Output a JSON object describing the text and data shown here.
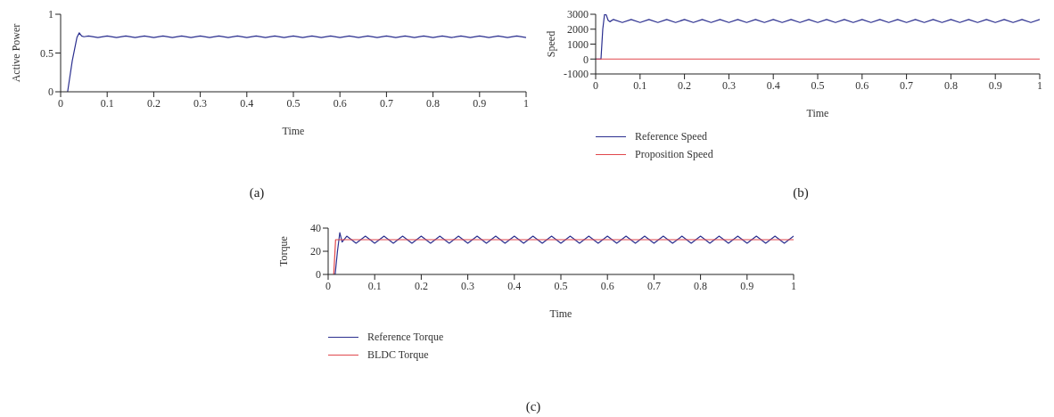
{
  "chart_data": [
    {
      "type": "line",
      "xlabel": "Time",
      "ylabel": "Active Power",
      "xlim": [
        0,
        1
      ],
      "xticks": [
        0,
        0.1,
        0.2,
        0.3,
        0.4,
        0.5,
        0.6,
        0.7,
        0.8,
        0.9,
        1
      ],
      "ylim": [
        0,
        1
      ],
      "yticks": [
        0,
        0.5,
        1
      ],
      "legend": false,
      "marker": "none",
      "line_style": "solid",
      "annotations": [
        "(a)"
      ],
      "series": [
        {
          "color": "#2b2f8f",
          "x": [
            0.015,
            0.025,
            0.035,
            0.04,
            0.045,
            0.05,
            0.06,
            0.08,
            0.1,
            0.12,
            0.14,
            0.16,
            0.18,
            0.2,
            0.22,
            0.24,
            0.26,
            0.28,
            0.3,
            0.32,
            0.34,
            0.36,
            0.38,
            0.4,
            0.42,
            0.44,
            0.46,
            0.48,
            0.5,
            0.52,
            0.54,
            0.56,
            0.58,
            0.6,
            0.62,
            0.64,
            0.66,
            0.68,
            0.7,
            0.72,
            0.74,
            0.76,
            0.78,
            0.8,
            0.82,
            0.84,
            0.86,
            0.88,
            0.9,
            0.92,
            0.94,
            0.96,
            0.98,
            1
          ],
          "values": [
            0,
            0.4,
            0.7,
            0.76,
            0.72,
            0.71,
            0.72,
            0.7,
            0.72,
            0.7,
            0.72,
            0.7,
            0.72,
            0.7,
            0.72,
            0.7,
            0.72,
            0.7,
            0.72,
            0.7,
            0.72,
            0.7,
            0.72,
            0.7,
            0.72,
            0.7,
            0.72,
            0.7,
            0.72,
            0.7,
            0.72,
            0.7,
            0.72,
            0.7,
            0.72,
            0.7,
            0.72,
            0.7,
            0.72,
            0.7,
            0.72,
            0.7,
            0.72,
            0.7,
            0.72,
            0.7,
            0.72,
            0.7,
            0.72,
            0.7,
            0.72,
            0.7,
            0.72,
            0.7
          ]
        }
      ]
    },
    {
      "type": "line",
      "xlabel": "Time",
      "ylabel": "Speed",
      "xlim": [
        0,
        1
      ],
      "xticks": [
        0,
        0.1,
        0.2,
        0.3,
        0.4,
        0.5,
        0.6,
        0.7,
        0.8,
        0.9,
        1
      ],
      "ylim": [
        -1000,
        3000
      ],
      "yticks": [
        -1000,
        0,
        1000,
        2000,
        3000
      ],
      "legend": "bottom",
      "marker": "none",
      "line_style": "solid",
      "annotations": [
        "(b)"
      ],
      "series": [
        {
          "name": "Reference Speed",
          "color": "#2b2f8f",
          "x": [
            0,
            0.012,
            0.016,
            0.02,
            0.024,
            0.028,
            0.032,
            0.04,
            0.06,
            0.08,
            0.1,
            0.12,
            0.14,
            0.16,
            0.18,
            0.2,
            0.22,
            0.24,
            0.26,
            0.28,
            0.3,
            0.32,
            0.34,
            0.36,
            0.38,
            0.4,
            0.42,
            0.44,
            0.46,
            0.48,
            0.5,
            0.52,
            0.54,
            0.56,
            0.58,
            0.6,
            0.62,
            0.64,
            0.66,
            0.68,
            0.7,
            0.72,
            0.74,
            0.76,
            0.78,
            0.8,
            0.82,
            0.84,
            0.86,
            0.88,
            0.9,
            0.92,
            0.94,
            0.96,
            0.98,
            1
          ],
          "values": [
            0,
            0,
            2000,
            3000,
            2950,
            2600,
            2500,
            2650,
            2450,
            2650,
            2450,
            2650,
            2450,
            2650,
            2450,
            2650,
            2450,
            2650,
            2450,
            2650,
            2450,
            2650,
            2450,
            2650,
            2450,
            2650,
            2450,
            2650,
            2450,
            2650,
            2450,
            2650,
            2450,
            2650,
            2450,
            2650,
            2450,
            2650,
            2450,
            2650,
            2450,
            2650,
            2450,
            2650,
            2450,
            2650,
            2450,
            2650,
            2450,
            2650,
            2450,
            2650,
            2450,
            2650,
            2450,
            2650
          ]
        },
        {
          "name": "Proposition Speed",
          "color": "#e0474c",
          "x": [
            0,
            1
          ],
          "values": [
            0,
            0
          ]
        }
      ]
    },
    {
      "type": "line",
      "xlabel": "Time",
      "ylabel": "Torque",
      "xlim": [
        0,
        1
      ],
      "xticks": [
        0,
        0.1,
        0.2,
        0.3,
        0.4,
        0.5,
        0.6,
        0.7,
        0.8,
        0.9,
        1
      ],
      "ylim": [
        0,
        40
      ],
      "yticks": [
        0,
        20,
        40
      ],
      "legend": "bottom",
      "marker": "none",
      "line_style": "solid",
      "annotations": [
        "(c)"
      ],
      "series": [
        {
          "name": "Reference Torque",
          "color": "#2b2f8f",
          "x": [
            0.015,
            0.02,
            0.025,
            0.03,
            0.04,
            0.06,
            0.08,
            0.1,
            0.12,
            0.14,
            0.16,
            0.18,
            0.2,
            0.22,
            0.24,
            0.26,
            0.28,
            0.3,
            0.32,
            0.34,
            0.36,
            0.38,
            0.4,
            0.42,
            0.44,
            0.46,
            0.48,
            0.5,
            0.52,
            0.54,
            0.56,
            0.58,
            0.6,
            0.62,
            0.64,
            0.66,
            0.68,
            0.7,
            0.72,
            0.74,
            0.76,
            0.78,
            0.8,
            0.82,
            0.84,
            0.86,
            0.88,
            0.9,
            0.92,
            0.94,
            0.96,
            0.98,
            1
          ],
          "values": [
            0,
            20,
            36,
            28,
            33,
            27,
            33,
            27,
            33,
            27,
            33,
            27,
            33,
            27,
            33,
            27,
            33,
            27,
            33,
            27,
            33,
            27,
            33,
            27,
            33,
            27,
            33,
            27,
            33,
            27,
            33,
            27,
            33,
            27,
            33,
            27,
            33,
            27,
            33,
            27,
            33,
            27,
            33,
            27,
            33,
            27,
            33,
            27,
            33,
            27,
            33,
            27,
            33
          ]
        },
        {
          "name": "BLDC Torque",
          "color": "#e0474c",
          "x": [
            0.012,
            0.016,
            1
          ],
          "values": [
            0,
            30,
            30
          ]
        }
      ]
    }
  ]
}
